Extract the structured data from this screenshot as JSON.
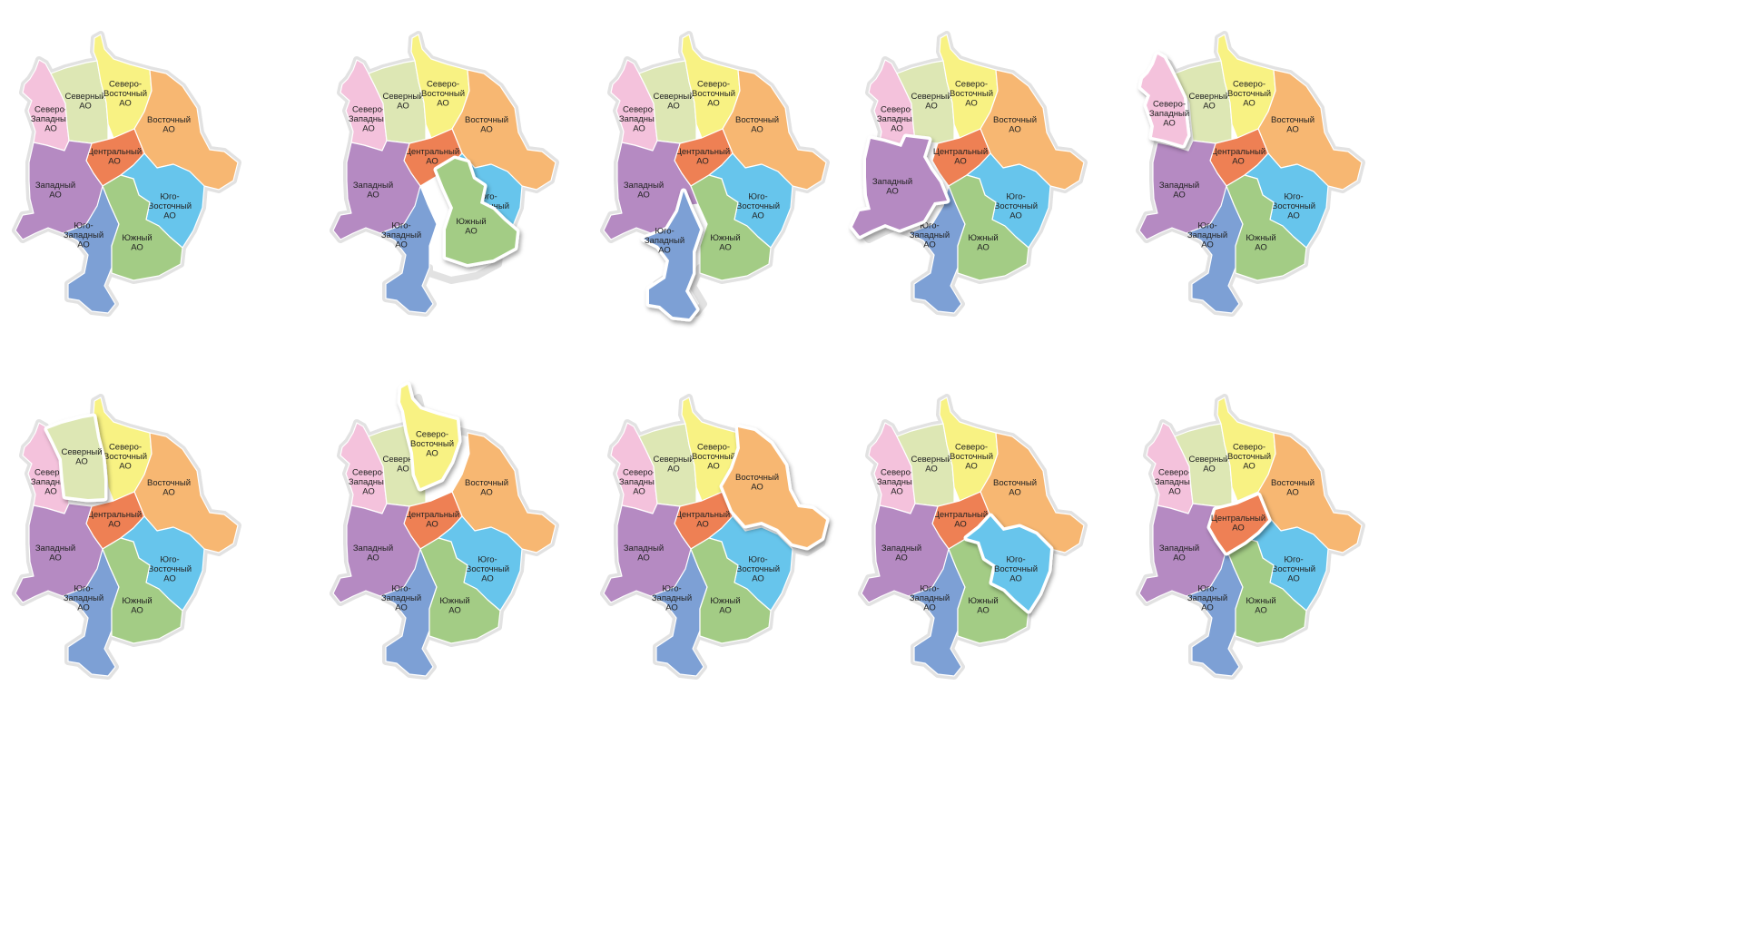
{
  "districts": [
    {
      "id": "nw",
      "lines": [
        "Северо-",
        "Западный",
        "АО"
      ],
      "color": "#f4c2dc"
    },
    {
      "id": "north",
      "lines": [
        "Северный",
        "АО"
      ],
      "color": "#dde7b4"
    },
    {
      "id": "ne",
      "lines": [
        "Северо-",
        "Восточный",
        "АО"
      ],
      "color": "#f8f283"
    },
    {
      "id": "east",
      "lines": [
        "Восточный",
        "АО"
      ],
      "color": "#f7b772"
    },
    {
      "id": "central",
      "lines": [
        "Центральный",
        "АО"
      ],
      "color": "#ee8054"
    },
    {
      "id": "west",
      "lines": [
        "Западный",
        "АО"
      ],
      "color": "#b58ac2"
    },
    {
      "id": "se",
      "lines": [
        "Юго-",
        "Восточный",
        "АО"
      ],
      "color": "#67c5ec"
    },
    {
      "id": "sw",
      "lines": [
        "Юго-",
        "Западный",
        "АО"
      ],
      "color": "#7da0d5"
    },
    {
      "id": "south",
      "lines": [
        "Южный",
        "АО"
      ],
      "color": "#a3cc85"
    }
  ],
  "maps": [
    {
      "highlight": null
    },
    {
      "highlight": "south"
    },
    {
      "highlight": "sw"
    },
    {
      "highlight": "west"
    },
    {
      "highlight": "nw"
    },
    {
      "highlight": "north"
    },
    {
      "highlight": "ne"
    },
    {
      "highlight": "east"
    },
    {
      "highlight": "se"
    },
    {
      "highlight": "central"
    }
  ]
}
